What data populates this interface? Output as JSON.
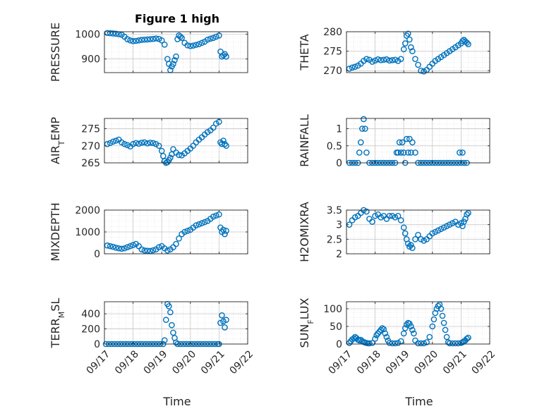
{
  "figure": {
    "title": "Figure 1 high",
    "xlabel": "Time",
    "marker_color": "#0072BD",
    "grid": true,
    "x_tick_labels": [
      "09/17",
      "09/18",
      "09/19",
      "09/20",
      "09/21",
      "09/22"
    ]
  },
  "chart_data": [
    {
      "type": "scatter",
      "ylabel": "PRESSURE",
      "xlim": [
        0,
        5
      ],
      "ylim": [
        845,
        1010
      ],
      "yticks": [
        900,
        1000
      ],
      "x": [
        0.1,
        0.2,
        0.3,
        0.4,
        0.5,
        0.6,
        0.7,
        0.8,
        0.9,
        1.0,
        1.1,
        1.2,
        1.3,
        1.4,
        1.5,
        1.6,
        1.7,
        1.8,
        1.9,
        2.0,
        2.1,
        2.2,
        2.25,
        2.3,
        2.35,
        2.4,
        2.45,
        2.5,
        2.55,
        2.6,
        2.65,
        2.7,
        2.8,
        2.9,
        3.0,
        3.1,
        3.2,
        3.3,
        3.4,
        3.5,
        3.6,
        3.7,
        3.8,
        3.9,
        4.0,
        4.05,
        4.1,
        4.15,
        4.2,
        4.25
      ],
      "y": [
        1005,
        1004,
        1003,
        1002,
        1000,
        998,
        990,
        980,
        975,
        972,
        973,
        975,
        977,
        978,
        979,
        980,
        981,
        983,
        981,
        975,
        958,
        900,
        880,
        855,
        870,
        880,
        895,
        910,
        980,
        995,
        990,
        985,
        965,
        955,
        952,
        954,
        957,
        960,
        965,
        970,
        978,
        982,
        985,
        990,
        995,
        930,
        910,
        915,
        920,
        910
      ]
    },
    {
      "type": "scatter",
      "ylabel": "THETA",
      "xlim": [
        0,
        5
      ],
      "ylim": [
        269.5,
        280
      ],
      "yticks": [
        270,
        275,
        280
      ],
      "x": [
        0.1,
        0.2,
        0.3,
        0.4,
        0.5,
        0.6,
        0.7,
        0.8,
        0.9,
        1.0,
        1.1,
        1.2,
        1.3,
        1.4,
        1.5,
        1.6,
        1.7,
        1.8,
        1.9,
        2.0,
        2.05,
        2.1,
        2.15,
        2.2,
        2.25,
        2.3,
        2.4,
        2.5,
        2.6,
        2.7,
        2.8,
        2.9,
        3.0,
        3.1,
        3.2,
        3.3,
        3.4,
        3.5,
        3.6,
        3.7,
        3.8,
        3.9,
        4.0,
        4.05,
        4.1,
        4.15,
        4.2,
        4.25
      ],
      "y": [
        270.5,
        270.8,
        271,
        271.3,
        271.8,
        272.5,
        273,
        272.8,
        272.3,
        272.6,
        272.9,
        272.7,
        272.8,
        272.9,
        272.6,
        272.7,
        272.8,
        272.5,
        273,
        275.5,
        277,
        279,
        279.5,
        278,
        276,
        275,
        273,
        271.5,
        270,
        269.8,
        270.2,
        271,
        271.8,
        272.5,
        273,
        273.5,
        274,
        274.5,
        275,
        275.5,
        276,
        276.5,
        277,
        277.6,
        277.9,
        277.5,
        277.2,
        276.8
      ]
    },
    {
      "type": "scatter",
      "ylabel": "AIR_TEMP",
      "xlim": [
        0,
        5
      ],
      "ylim": [
        265,
        278
      ],
      "yticks": [
        265,
        270,
        275
      ],
      "x": [
        0.1,
        0.2,
        0.3,
        0.4,
        0.5,
        0.6,
        0.7,
        0.8,
        0.9,
        1.0,
        1.1,
        1.2,
        1.3,
        1.4,
        1.5,
        1.6,
        1.7,
        1.8,
        1.9,
        2.0,
        2.05,
        2.1,
        2.15,
        2.2,
        2.25,
        2.3,
        2.35,
        2.4,
        2.5,
        2.6,
        2.7,
        2.8,
        2.9,
        3.0,
        3.1,
        3.2,
        3.3,
        3.4,
        3.5,
        3.6,
        3.7,
        3.8,
        3.9,
        4.0,
        4.05,
        4.1,
        4.15,
        4.2,
        4.25
      ],
      "y": [
        270.5,
        270.8,
        271.2,
        271.5,
        271.8,
        271,
        270.5,
        270.2,
        269.8,
        270.5,
        270.8,
        270.6,
        270.9,
        271,
        270.7,
        270.9,
        270.8,
        270.5,
        270,
        268.5,
        267,
        265.5,
        265,
        265.2,
        265.8,
        266.5,
        267.5,
        269,
        268,
        267.3,
        267.2,
        267.8,
        268.5,
        269.2,
        270,
        271,
        271.8,
        272.5,
        273.3,
        274,
        274.5,
        275.3,
        276.5,
        277,
        271,
        270.5,
        271.5,
        270.5,
        270
      ]
    },
    {
      "type": "scatter",
      "ylabel": "RAINFALL",
      "xlim": [
        0,
        5
      ],
      "ylim": [
        0,
        1.3
      ],
      "yticks": [
        0,
        0.5,
        1
      ],
      "x": [
        0.1,
        0.2,
        0.3,
        0.4,
        0.45,
        0.5,
        0.55,
        0.6,
        0.65,
        0.7,
        0.8,
        0.9,
        1.0,
        1.1,
        1.2,
        1.3,
        1.4,
        1.5,
        1.6,
        1.7,
        1.75,
        1.8,
        1.85,
        1.9,
        1.95,
        2.0,
        2.05,
        2.1,
        2.15,
        2.2,
        2.25,
        2.3,
        2.4,
        2.5,
        2.6,
        2.7,
        2.8,
        2.9,
        3.0,
        3.1,
        3.2,
        3.3,
        3.4,
        3.5,
        3.6,
        3.7,
        3.8,
        3.9,
        3.95,
        4.0,
        4.05,
        4.1,
        4.2
      ],
      "y": [
        0,
        0,
        0,
        0,
        0.3,
        0.6,
        1.0,
        1.28,
        1.0,
        0.3,
        0,
        0,
        0,
        0,
        0,
        0,
        0,
        0,
        0,
        0,
        0.3,
        0.3,
        0.6,
        0.3,
        0.6,
        0.3,
        0,
        0.7,
        0.3,
        0.7,
        0.3,
        0.6,
        0.3,
        0,
        0,
        0,
        0,
        0,
        0,
        0,
        0,
        0,
        0,
        0,
        0,
        0,
        0,
        0,
        0.3,
        0,
        0.3,
        0,
        0
      ]
    },
    {
      "type": "scatter",
      "ylabel": "MIXDEPTH",
      "xlim": [
        0,
        5
      ],
      "ylim": [
        0,
        2000
      ],
      "yticks": [
        0,
        1000,
        2000
      ],
      "x": [
        0.1,
        0.2,
        0.3,
        0.4,
        0.5,
        0.6,
        0.7,
        0.8,
        0.9,
        1.0,
        1.1,
        1.2,
        1.3,
        1.4,
        1.5,
        1.6,
        1.7,
        1.8,
        1.9,
        2.0,
        2.1,
        2.2,
        2.3,
        2.4,
        2.5,
        2.6,
        2.7,
        2.8,
        2.9,
        3.0,
        3.1,
        3.2,
        3.3,
        3.4,
        3.5,
        3.6,
        3.7,
        3.8,
        3.9,
        4.0,
        4.05,
        4.1,
        4.15,
        4.2,
        4.25
      ],
      "y": [
        380,
        350,
        320,
        280,
        250,
        230,
        250,
        300,
        350,
        400,
        450,
        350,
        200,
        150,
        140,
        130,
        160,
        200,
        300,
        350,
        250,
        150,
        200,
        300,
        450,
        700,
        900,
        1000,
        1050,
        1100,
        1200,
        1300,
        1350,
        1400,
        1450,
        1500,
        1600,
        1700,
        1750,
        1800,
        1200,
        1000,
        1100,
        900,
        1050
      ]
    },
    {
      "type": "scatter",
      "ylabel": "H2OMIXRA",
      "xlim": [
        0,
        5
      ],
      "ylim": [
        2,
        3.5
      ],
      "yticks": [
        2,
        2.5,
        3,
        3.5
      ],
      "x": [
        0.1,
        0.2,
        0.3,
        0.4,
        0.5,
        0.6,
        0.7,
        0.8,
        0.9,
        1.0,
        1.1,
        1.2,
        1.3,
        1.4,
        1.5,
        1.6,
        1.7,
        1.8,
        1.9,
        2.0,
        2.05,
        2.1,
        2.15,
        2.2,
        2.25,
        2.3,
        2.4,
        2.5,
        2.6,
        2.7,
        2.8,
        2.9,
        3.0,
        3.1,
        3.2,
        3.3,
        3.4,
        3.5,
        3.6,
        3.7,
        3.8,
        3.9,
        4.0,
        4.05,
        4.1,
        4.15,
        4.2,
        4.25
      ],
      "y": [
        3.0,
        3.15,
        3.25,
        3.3,
        3.4,
        3.5,
        3.45,
        3.2,
        3.1,
        3.3,
        3.35,
        3.25,
        3.3,
        3.2,
        3.3,
        3.3,
        3.25,
        3.3,
        3.15,
        2.9,
        2.7,
        2.5,
        2.35,
        2.25,
        2.3,
        2.2,
        2.5,
        2.65,
        2.5,
        2.45,
        2.5,
        2.6,
        2.7,
        2.75,
        2.8,
        2.85,
        2.9,
        2.95,
        3.0,
        3.05,
        3.1,
        3.0,
        3.05,
        2.95,
        3.1,
        3.2,
        3.35,
        3.4
      ]
    },
    {
      "type": "scatter",
      "ylabel": "TERR_MSL",
      "xlim": [
        0,
        5
      ],
      "ylim": [
        0,
        560
      ],
      "yticks": [
        0,
        200,
        400
      ],
      "x": [
        0.05,
        0.15,
        0.25,
        0.35,
        0.45,
        0.55,
        0.65,
        0.75,
        0.85,
        0.95,
        1.05,
        1.15,
        1.25,
        1.35,
        1.45,
        1.55,
        1.65,
        1.75,
        1.85,
        1.95,
        2.05,
        2.1,
        2.15,
        2.2,
        2.25,
        2.3,
        2.35,
        2.4,
        2.45,
        2.5,
        2.55,
        2.65,
        2.75,
        2.85,
        2.95,
        3.05,
        3.15,
        3.25,
        3.35,
        3.45,
        3.55,
        3.65,
        3.75,
        3.85,
        3.95,
        4.0,
        4.05,
        4.1,
        4.15,
        4.2,
        4.25
      ],
      "y": [
        0,
        0,
        0,
        0,
        0,
        0,
        0,
        0,
        0,
        0,
        0,
        0,
        0,
        0,
        0,
        0,
        0,
        0,
        0,
        0,
        0,
        50,
        320,
        530,
        500,
        420,
        250,
        150,
        80,
        20,
        0,
        0,
        0,
        0,
        0,
        0,
        0,
        0,
        0,
        0,
        0,
        0,
        0,
        0,
        0,
        0,
        280,
        380,
        300,
        220,
        320
      ]
    },
    {
      "type": "scatter",
      "ylabel": "SUN_FLUX",
      "xlim": [
        0,
        5
      ],
      "ylim": [
        0,
        120
      ],
      "yticks": [
        0,
        50,
        100
      ],
      "x": [
        0.1,
        0.15,
        0.2,
        0.25,
        0.3,
        0.35,
        0.4,
        0.45,
        0.5,
        0.55,
        0.6,
        0.65,
        0.7,
        0.75,
        0.8,
        0.9,
        1.0,
        1.05,
        1.1,
        1.15,
        1.2,
        1.25,
        1.3,
        1.35,
        1.4,
        1.45,
        1.5,
        1.6,
        1.7,
        1.8,
        1.9,
        2.0,
        2.05,
        2.1,
        2.15,
        2.2,
        2.25,
        2.3,
        2.35,
        2.4,
        2.5,
        2.6,
        2.7,
        2.8,
        2.9,
        3.0,
        3.05,
        3.1,
        3.15,
        3.2,
        3.25,
        3.3,
        3.35,
        3.4,
        3.45,
        3.5,
        3.55,
        3.6,
        3.7,
        3.8,
        3.9,
        4.0,
        4.05,
        4.1,
        4.15,
        4.2,
        4.25
      ],
      "y": [
        3,
        8,
        13,
        16,
        20,
        17,
        12,
        10,
        12,
        8,
        6,
        4,
        3,
        2,
        2,
        3,
        15,
        25,
        30,
        35,
        40,
        45,
        42,
        30,
        20,
        10,
        3,
        2,
        2,
        3,
        8,
        30,
        45,
        55,
        60,
        58,
        50,
        40,
        30,
        10,
        2,
        2,
        2,
        5,
        20,
        50,
        70,
        88,
        100,
        108,
        112,
        100,
        80,
        60,
        40,
        20,
        5,
        2,
        2,
        2,
        2,
        3,
        5,
        8,
        10,
        15,
        18
      ]
    }
  ]
}
